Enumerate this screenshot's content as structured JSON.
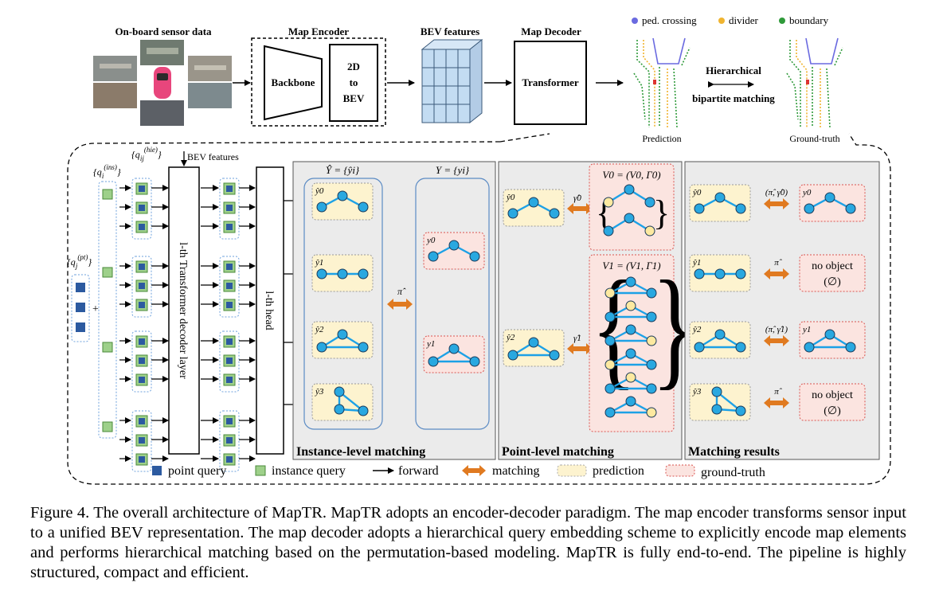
{
  "top": {
    "sensor_title": "On-board sensor data",
    "encoder_title": "Map Encoder",
    "backbone": "Backbone",
    "bev_box": [
      "2D",
      "to",
      "BEV"
    ],
    "bev_features_title": "BEV features",
    "decoder_title": "Map Decoder",
    "transformer": "Transformer",
    "legend": [
      "ped. crossing",
      "divider",
      "boundary"
    ],
    "hier_label": [
      "Hierarchical",
      "bipartite matching"
    ],
    "prediction": "Prediction",
    "ground_truth": "Ground-truth"
  },
  "decoder": {
    "bev_features": "BEV features",
    "q_hie": "{q_ij^(hie)}",
    "q_ins": "{q_i^(ins)}",
    "q_pt": "{q_j^(pt)}",
    "plus": "+",
    "layer_label": "l-th Transformer decoder layer",
    "head_label": "l-th head"
  },
  "instance_panel": {
    "title": "Instance-level matching",
    "pred_set": "Ŷ = {ŷi}",
    "gt_set": "Y = {yi}",
    "pred_labels": [
      "ŷ0",
      "ŷ1",
      "ŷ2",
      "ŷ3"
    ],
    "gt_labels": [
      "y0",
      "y1"
    ],
    "pi": "π̂"
  },
  "point_panel": {
    "title": "Point-level matching",
    "pred_labels": [
      "ŷ0",
      "ŷ2"
    ],
    "gamma": [
      "γ̂0",
      "γ̂1"
    ],
    "v0": "V0 = (V0, Γ0)",
    "v1": "V1 = (V1, Γ1)"
  },
  "results_panel": {
    "title": "Matching results",
    "pred_labels": [
      "ŷ0",
      "ŷ1",
      "ŷ2",
      "ŷ3"
    ],
    "pairs": [
      "(π̂, γ̂0)",
      "π̂",
      "(π̂, γ̂1)",
      "π̂"
    ],
    "targets": [
      "y0",
      "no object (∅)",
      "y1",
      "no object (∅)"
    ]
  },
  "legend_bottom": [
    "point query",
    "instance query",
    "forward",
    "matching",
    "prediction",
    "ground-truth"
  ],
  "caption": "Figure 4. The overall architecture of MapTR. MapTR adopts an encoder-decoder paradigm. The map encoder transforms sensor input to a unified BEV representation. The map decoder adopts a hierarchical query embedding scheme to explicitly encode map elements and performs hierarchical matching based on the permutation-based modeling. MapTR is fully end-to-end. The pipeline is highly structured, compact and efficient.",
  "colors": {
    "node": "#29a8e0",
    "node_gt": "#fde9a0",
    "edge": "#1da1e6",
    "pred_fill": "#fdf3cf",
    "gt_fill": "#fbe4e0",
    "gt_border": "#d9534f",
    "match_arrow": "#e07a20",
    "point_query": "#2c5aa0",
    "instance_query": "#9ed08a",
    "panel_bg": "#ebebeb",
    "bev_grid": "#c3dcf2"
  }
}
